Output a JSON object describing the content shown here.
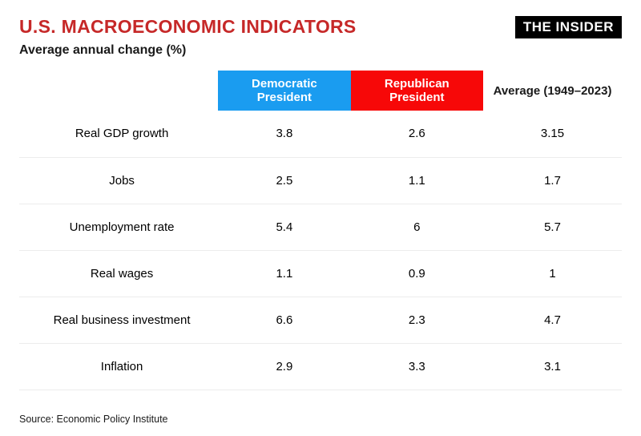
{
  "header": {
    "title": "U.S. MACROECONOMIC INDICATORS",
    "title_color": "#c62828",
    "subtitle": "Average annual change (%)",
    "logo_text": "THE INSIDER",
    "logo_bg": "#000000",
    "logo_fg": "#ffffff"
  },
  "table": {
    "type": "table",
    "row_border_color": "#ececec",
    "background_color": "#ffffff",
    "header_fontsize": 15,
    "cell_fontsize": 15,
    "columns": [
      {
        "key": "label",
        "header": "",
        "bg": "#ffffff",
        "fg": "#1a1a1a",
        "width_pct": 33
      },
      {
        "key": "dem",
        "header": "Democratic President",
        "bg": "#1a9cf0",
        "fg": "#ffffff",
        "width_pct": 22
      },
      {
        "key": "rep",
        "header": "Republican President",
        "bg": "#f70808",
        "fg": "#ffffff",
        "width_pct": 22
      },
      {
        "key": "avg",
        "header": "Average (1949–2023)",
        "bg": "#ffffff",
        "fg": "#1a1a1a",
        "width_pct": 23
      }
    ],
    "rows": [
      {
        "label": "Real GDP growth",
        "dem": "3.8",
        "rep": "2.6",
        "avg": "3.15"
      },
      {
        "label": "Jobs",
        "dem": "2.5",
        "rep": "1.1",
        "avg": "1.7"
      },
      {
        "label": "Unemployment rate",
        "dem": "5.4",
        "rep": "6",
        "avg": "5.7"
      },
      {
        "label": "Real wages",
        "dem": "1.1",
        "rep": "0.9",
        "avg": "1"
      },
      {
        "label": "Real business investment",
        "dem": "6.6",
        "rep": "2.3",
        "avg": "4.7"
      },
      {
        "label": "Inflation",
        "dem": "2.9",
        "rep": "3.3",
        "avg": "3.1"
      }
    ]
  },
  "footer": {
    "source": "Source: Economic Policy Institute"
  }
}
